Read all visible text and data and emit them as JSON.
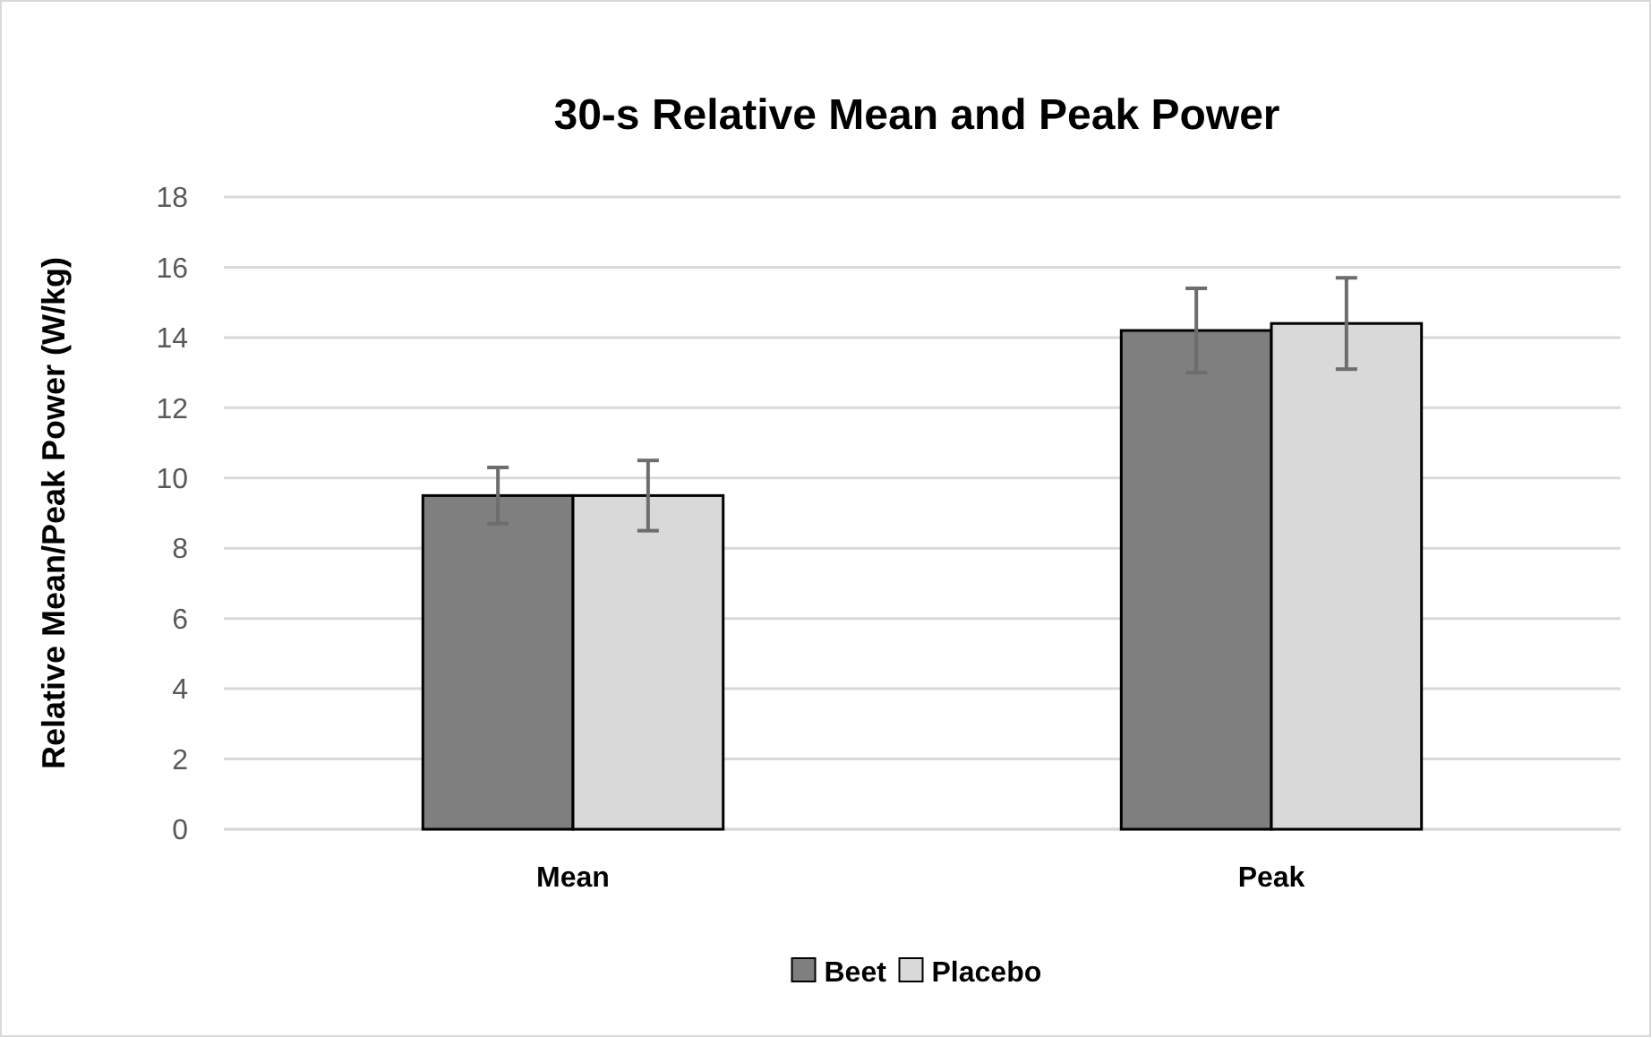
{
  "chart_data": {
    "type": "bar",
    "title": "30-s Relative Mean and Peak Power",
    "ylabel": "Relative Mean/Peak Power (W/kg)",
    "categories": [
      "Mean",
      "Peak"
    ],
    "series": [
      {
        "name": "Beet",
        "color": "#7f7f7f",
        "values": [
          9.5,
          14.2
        ],
        "errors": [
          0.8,
          1.2
        ]
      },
      {
        "name": "Placebo",
        "color": "#d9d9d9",
        "values": [
          9.5,
          14.4
        ],
        "errors": [
          1.0,
          1.3
        ]
      }
    ],
    "ylim": [
      0,
      18
    ],
    "yticks": [
      0,
      2,
      4,
      6,
      8,
      10,
      12,
      14,
      16,
      18
    ],
    "grid": "y",
    "legend": "bottom"
  }
}
